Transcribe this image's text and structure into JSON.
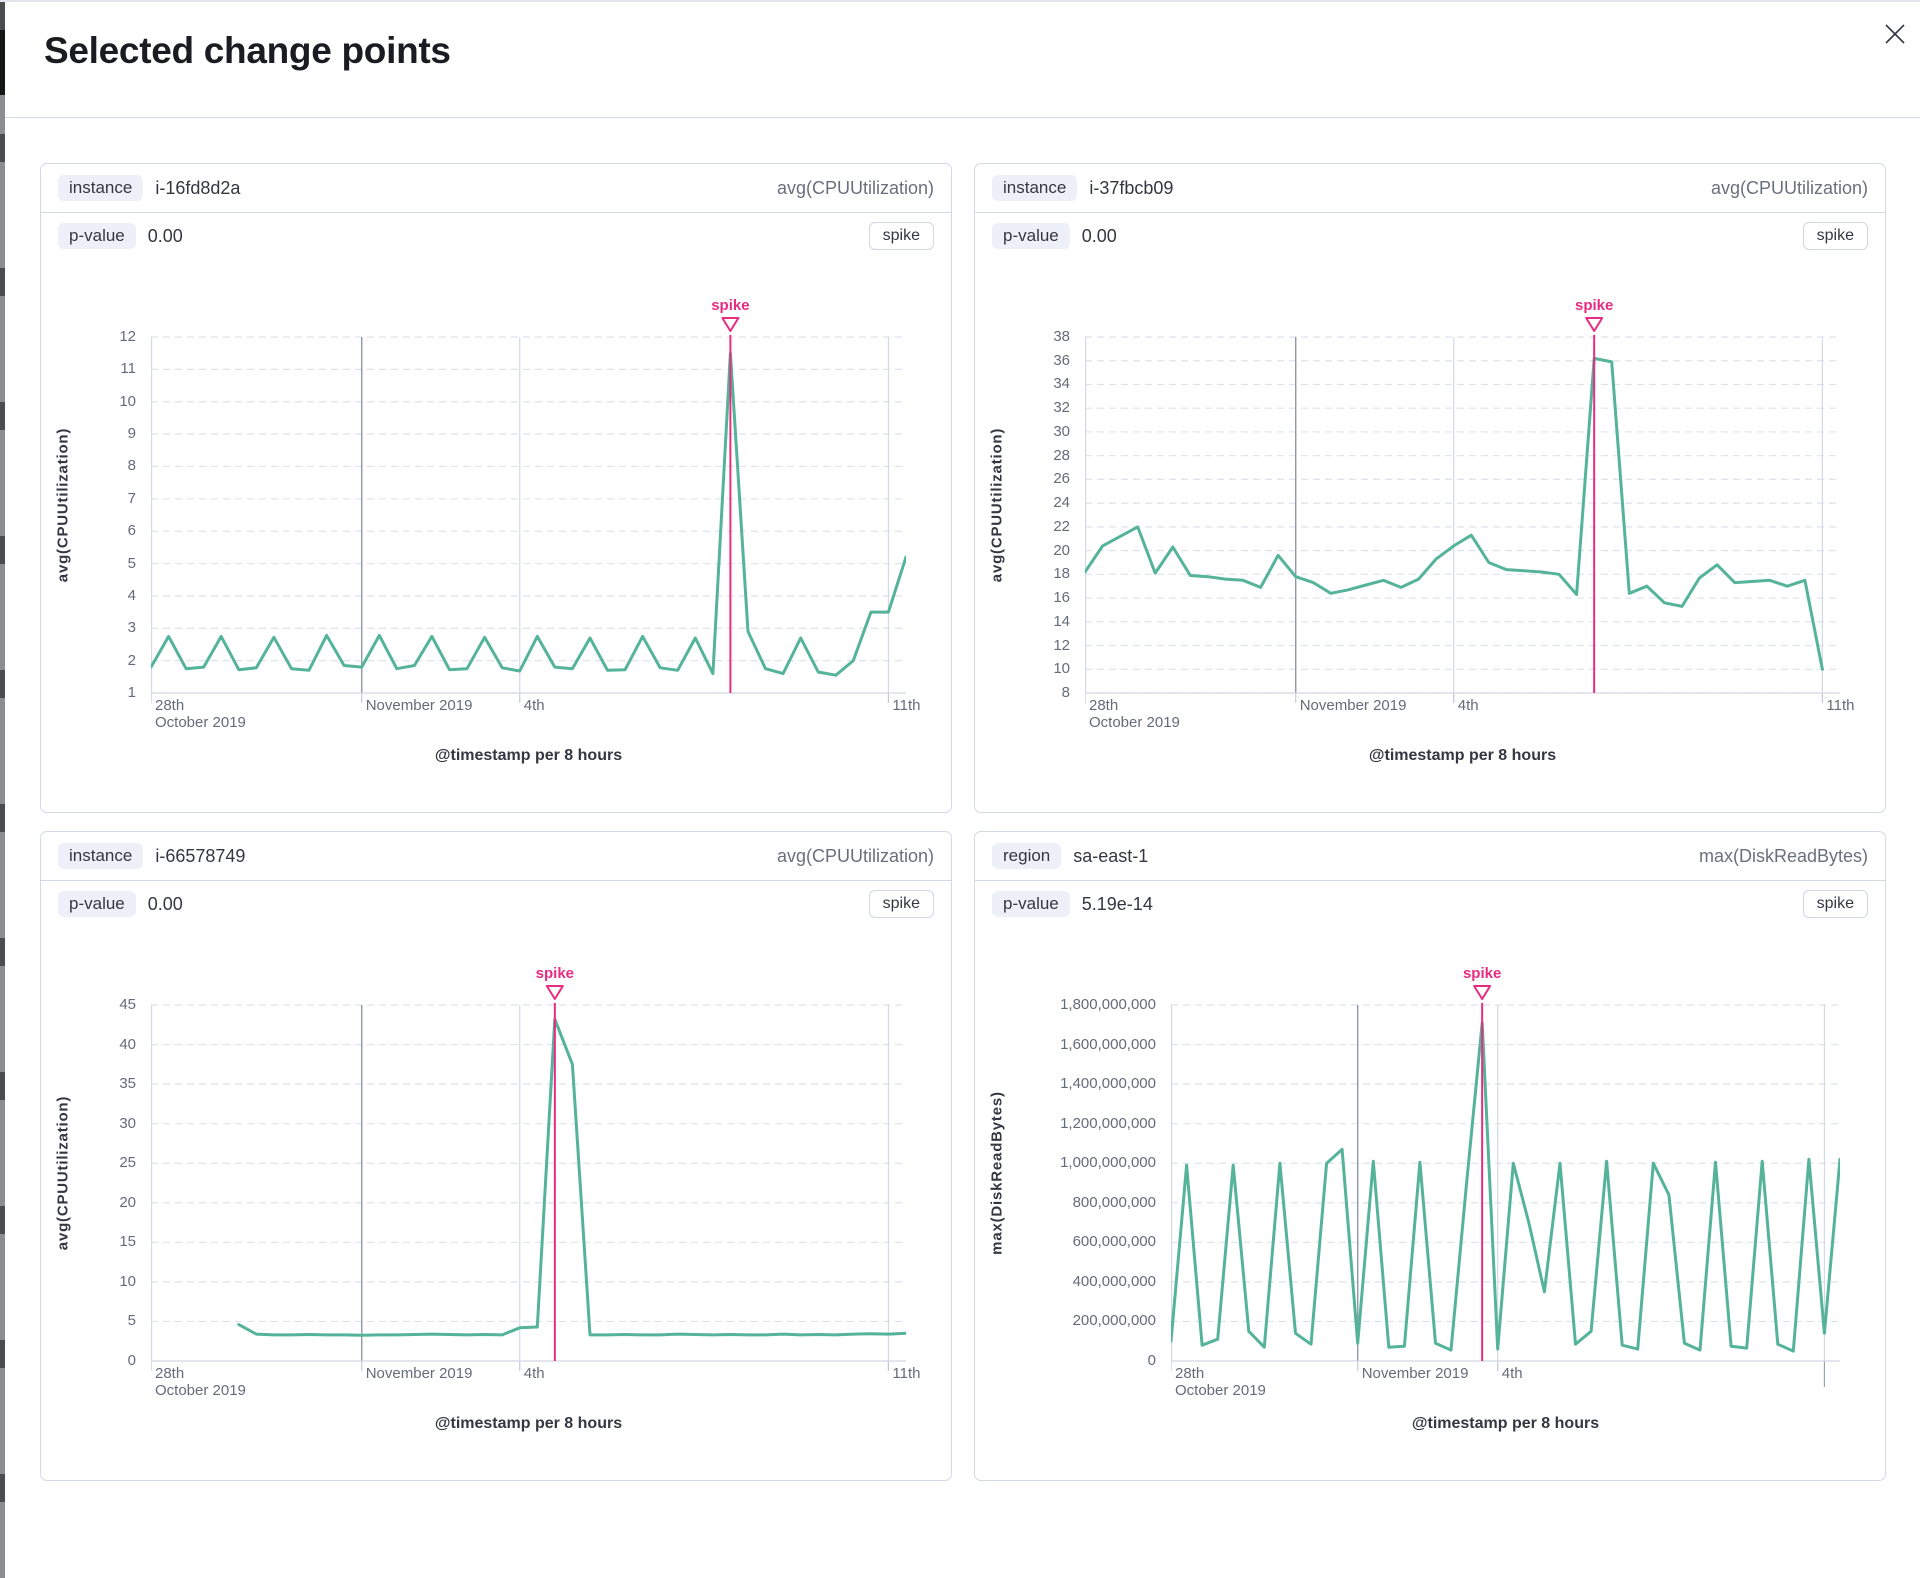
{
  "modal": {
    "title": "Selected change points"
  },
  "accent_colors": {
    "series_green": "#54b399",
    "annotation_pink": "#e82c82",
    "grid": "#dde2ed",
    "axis": "#d4d9e3",
    "month_line": "#8f97a8"
  },
  "panels": [
    {
      "field_badge": "instance",
      "field_value": "i-16fd8d2a",
      "metric": "avg(CPUUtilization)",
      "p_label": "p-value",
      "p_value": "0.00",
      "type_badge": "spike"
    },
    {
      "field_badge": "instance",
      "field_value": "i-37fbcb09",
      "metric": "avg(CPUUtilization)",
      "p_label": "p-value",
      "p_value": "0.00",
      "type_badge": "spike"
    },
    {
      "field_badge": "instance",
      "field_value": "i-66578749",
      "metric": "avg(CPUUtilization)",
      "p_label": "p-value",
      "p_value": "0.00",
      "type_badge": "spike"
    },
    {
      "field_badge": "region",
      "field_value": "sa-east-1",
      "metric": "max(DiskReadBytes)",
      "p_label": "p-value",
      "p_value": "5.19e-14",
      "type_badge": "spike"
    }
  ],
  "chart_data": [
    {
      "type": "line",
      "ylabel": "avg(CPUUtilization)",
      "xlabel": "@timestamp per 8 hours",
      "y_min": 1,
      "y_max": 12,
      "y_ticks": [
        {
          "v": 1,
          "label": "1"
        },
        {
          "v": 2,
          "label": "2"
        },
        {
          "v": 3,
          "label": "3"
        },
        {
          "v": 4,
          "label": "4"
        },
        {
          "v": 5,
          "label": "5"
        },
        {
          "v": 6,
          "label": "6"
        },
        {
          "v": 7,
          "label": "7"
        },
        {
          "v": 8,
          "label": "8"
        },
        {
          "v": 9,
          "label": "9"
        },
        {
          "v": 10,
          "label": "10"
        },
        {
          "v": 11,
          "label": "11"
        },
        {
          "v": 12,
          "label": "12"
        }
      ],
      "x_ticks": [
        {
          "pos": 0.0,
          "lines": [
            "28th",
            "October 2019"
          ],
          "vline": "none",
          "tick": "normal"
        },
        {
          "pos": 0.2791,
          "lines": [
            "November 2019"
          ],
          "vline": "dark",
          "tick": "normal"
        },
        {
          "pos": 0.4884,
          "lines": [
            "4th"
          ],
          "vline": "light",
          "tick": "normal"
        },
        {
          "pos": 0.9767,
          "lines": [
            "11th"
          ],
          "vline": "light",
          "tick": "normal"
        }
      ],
      "annotation": {
        "label": "spike",
        "pos": 0.7674
      },
      "values": [
        1.8,
        2.75,
        1.75,
        1.8,
        2.75,
        1.72,
        1.78,
        2.72,
        1.75,
        1.7,
        2.78,
        1.85,
        1.8,
        2.78,
        1.75,
        1.85,
        2.75,
        1.72,
        1.75,
        2.72,
        1.78,
        1.68,
        2.75,
        1.8,
        1.75,
        2.7,
        1.7,
        1.72,
        2.75,
        1.78,
        1.7,
        2.7,
        1.6,
        11.5,
        2.9,
        1.75,
        1.6,
        2.7,
        1.65,
        1.55,
        2.0,
        3.5,
        3.5,
        5.2
      ]
    },
    {
      "type": "line",
      "ylabel": "avg(CPUUtilization)",
      "xlabel": "@timestamp per 8 hours",
      "y_min": 8,
      "y_max": 38,
      "y_ticks": [
        {
          "v": 8,
          "label": "8"
        },
        {
          "v": 10,
          "label": "10"
        },
        {
          "v": 12,
          "label": "12"
        },
        {
          "v": 14,
          "label": "14"
        },
        {
          "v": 16,
          "label": "16"
        },
        {
          "v": 18,
          "label": "18"
        },
        {
          "v": 20,
          "label": "20"
        },
        {
          "v": 22,
          "label": "22"
        },
        {
          "v": 24,
          "label": "24"
        },
        {
          "v": 26,
          "label": "26"
        },
        {
          "v": 28,
          "label": "28"
        },
        {
          "v": 30,
          "label": "30"
        },
        {
          "v": 32,
          "label": "32"
        },
        {
          "v": 34,
          "label": "34"
        },
        {
          "v": 36,
          "label": "36"
        },
        {
          "v": 38,
          "label": "38"
        }
      ],
      "x_ticks": [
        {
          "pos": 0.0,
          "lines": [
            "28th",
            "October 2019"
          ],
          "vline": "none",
          "tick": "normal"
        },
        {
          "pos": 0.2791,
          "lines": [
            "November 2019"
          ],
          "vline": "dark",
          "tick": "normal"
        },
        {
          "pos": 0.4884,
          "lines": [
            "4th"
          ],
          "vline": "light",
          "tick": "normal"
        },
        {
          "pos": 0.9767,
          "lines": [
            "11th"
          ],
          "vline": "light",
          "tick": "normal"
        }
      ],
      "annotation": {
        "label": "spike",
        "pos": 0.6744
      },
      "values": [
        18.2,
        20.4,
        21.2,
        22.0,
        18.1,
        20.3,
        17.9,
        17.8,
        17.6,
        17.5,
        16.9,
        19.6,
        17.8,
        17.3,
        16.4,
        16.7,
        17.1,
        17.5,
        16.9,
        17.6,
        19.3,
        20.4,
        21.3,
        19.0,
        18.4,
        18.3,
        18.2,
        18.0,
        16.3,
        36.2,
        35.9,
        16.4,
        17.0,
        15.6,
        15.3,
        17.7,
        18.8,
        17.3,
        17.4,
        17.5,
        17.0,
        17.5,
        10.0,
        null
      ]
    },
    {
      "type": "line",
      "ylabel": "avg(CPUUtilization)",
      "xlabel": "@timestamp per 8 hours",
      "y_min": 0,
      "y_max": 45,
      "y_ticks": [
        {
          "v": 0,
          "label": "0"
        },
        {
          "v": 5,
          "label": "5"
        },
        {
          "v": 10,
          "label": "10"
        },
        {
          "v": 15,
          "label": "15"
        },
        {
          "v": 20,
          "label": "20"
        },
        {
          "v": 25,
          "label": "25"
        },
        {
          "v": 30,
          "label": "30"
        },
        {
          "v": 35,
          "label": "35"
        },
        {
          "v": 40,
          "label": "40"
        },
        {
          "v": 45,
          "label": "45"
        }
      ],
      "x_ticks": [
        {
          "pos": 0.0,
          "lines": [
            "28th",
            "October 2019"
          ],
          "vline": "none",
          "tick": "normal"
        },
        {
          "pos": 0.2791,
          "lines": [
            "November 2019"
          ],
          "vline": "dark",
          "tick": "normal"
        },
        {
          "pos": 0.4884,
          "lines": [
            "4th"
          ],
          "vline": "light",
          "tick": "normal"
        },
        {
          "pos": 0.9767,
          "lines": [
            "11th"
          ],
          "vline": "light",
          "tick": "normal"
        }
      ],
      "annotation": {
        "label": "spike",
        "pos": 0.5349
      },
      "values": [
        null,
        null,
        null,
        null,
        null,
        4.6,
        3.4,
        3.3,
        3.3,
        3.35,
        3.3,
        3.3,
        3.25,
        3.3,
        3.3,
        3.35,
        3.4,
        3.35,
        3.3,
        3.35,
        3.3,
        4.2,
        4.3,
        43.2,
        37.5,
        3.3,
        3.3,
        3.35,
        3.3,
        3.3,
        3.4,
        3.35,
        3.3,
        3.35,
        3.3,
        3.3,
        3.4,
        3.3,
        3.35,
        3.3,
        3.4,
        3.45,
        3.4,
        3.5
      ]
    },
    {
      "type": "line",
      "ylabel": "max(DiskReadBytes)",
      "xlabel": "@timestamp per 8 hours",
      "y_min": 0,
      "y_max": 1800000000,
      "y_ticks": [
        {
          "v": 0,
          "label": "0"
        },
        {
          "v": 200000000,
          "label": "200,000,000"
        },
        {
          "v": 400000000,
          "label": "400,000,000"
        },
        {
          "v": 600000000,
          "label": "600,000,000"
        },
        {
          "v": 800000000,
          "label": "800,000,000"
        },
        {
          "v": 1000000000,
          "label": "1,000,000,000"
        },
        {
          "v": 1200000000,
          "label": "1,200,000,000"
        },
        {
          "v": 1400000000,
          "label": "1,400,000,000"
        },
        {
          "v": 1600000000,
          "label": "1,600,000,000"
        },
        {
          "v": 1800000000,
          "label": "1,800,000,000"
        }
      ],
      "x_ticks": [
        {
          "pos": 0.0,
          "lines": [
            "28th",
            "October 2019"
          ],
          "vline": "none",
          "tick": "normal"
        },
        {
          "pos": 0.2791,
          "lines": [
            "November 2019"
          ],
          "vline": "dark",
          "tick": "normal"
        },
        {
          "pos": 0.4884,
          "lines": [
            "4th"
          ],
          "vline": "light",
          "tick": "normal"
        },
        {
          "pos": 0.9767,
          "lines": [],
          "vline": "light",
          "tick": "tall"
        }
      ],
      "annotation": {
        "label": "spike",
        "pos": 0.4651
      },
      "values": [
        100000000,
        990000000,
        80000000,
        110000000,
        990000000,
        150000000,
        70000000,
        1000000000,
        140000000,
        85000000,
        1000000000,
        1070000000,
        90000000,
        1010000000,
        70000000,
        75000000,
        1005000000,
        90000000,
        55000000,
        900000000,
        1710000000,
        60000000,
        1000000000,
        700000000,
        350000000,
        1000000000,
        85000000,
        150000000,
        1010000000,
        80000000,
        60000000,
        1000000000,
        840000000,
        90000000,
        55000000,
        1005000000,
        75000000,
        65000000,
        1010000000,
        85000000,
        50000000,
        1020000000,
        140000000,
        1020000000
      ]
    }
  ]
}
